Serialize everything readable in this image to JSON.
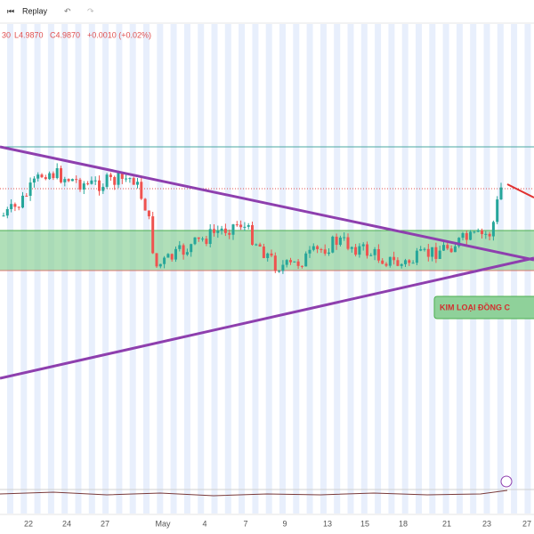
{
  "toolbar": {
    "replay": "Replay"
  },
  "legend": {
    "time": "30",
    "low": "L4.9870",
    "close": "C4.9870",
    "change": "+0.0010 (+0.02%)"
  },
  "annotation": "KIM LOẠI ĐỒNG C",
  "x_labels": [
    "22",
    "24",
    "27",
    "May",
    "4",
    "7",
    "9",
    "13",
    "15",
    "18",
    "21",
    "23",
    "27"
  ]
}
